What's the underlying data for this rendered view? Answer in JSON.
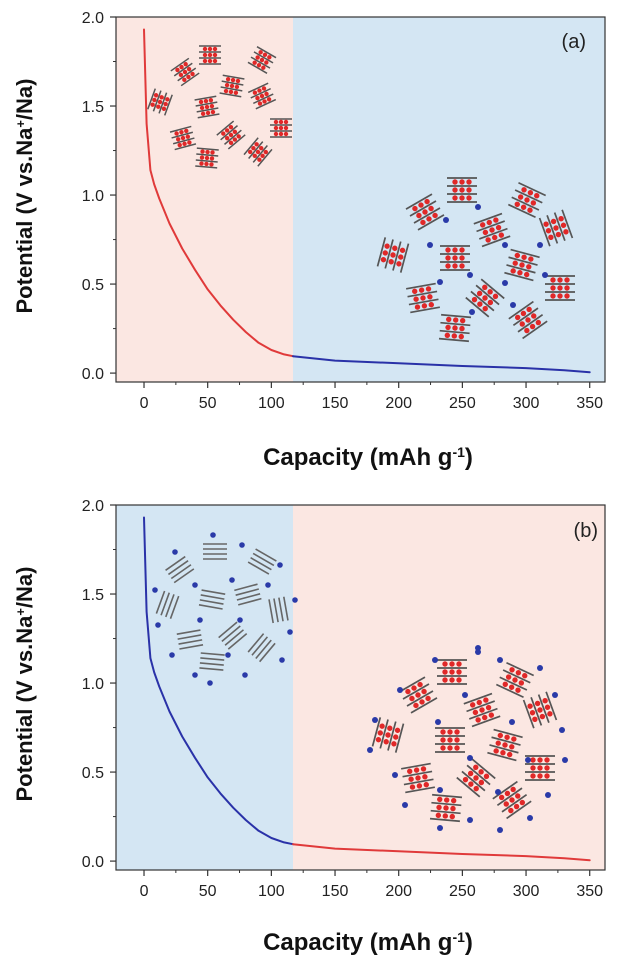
{
  "chart_data": [
    {
      "type": "line",
      "panel_label": "(a)",
      "xlabel": "Capacity (mAh g",
      "xlabel_sup": "-1",
      "xlabel_end": ")",
      "ylabel": "Potential (V vs.Na",
      "ylabel_sup": "+",
      "ylabel_end": "/Na)",
      "xlim": [
        -22,
        362
      ],
      "ylim": [
        -0.05,
        2.0
      ],
      "x_ticks": [
        0,
        50,
        100,
        150,
        200,
        250,
        300,
        350
      ],
      "y_ticks": [
        "0.0",
        "0.5",
        "1.0",
        "1.5",
        "2.0"
      ],
      "regions": [
        {
          "x0": -22,
          "x1": 117,
          "color": "#fbe7e2"
        },
        {
          "x0": 117,
          "x1": 362,
          "color": "#d4e6f3"
        }
      ],
      "series": [
        {
          "color": "#e03a3a",
          "x": [
            0,
            2,
            5,
            8,
            12,
            20,
            30,
            40,
            50,
            60,
            70,
            80,
            90,
            100,
            110,
            117
          ],
          "y": [
            1.93,
            1.4,
            1.14,
            1.06,
            0.98,
            0.84,
            0.7,
            0.58,
            0.47,
            0.38,
            0.3,
            0.23,
            0.17,
            0.13,
            0.105,
            0.095
          ]
        },
        {
          "color": "#2a32a8",
          "x": [
            117,
            150,
            200,
            250,
            300,
            330,
            350
          ],
          "y": [
            0.095,
            0.07,
            0.055,
            0.04,
            0.028,
            0.016,
            0.005
          ]
        }
      ]
    },
    {
      "type": "line",
      "panel_label": "(b)",
      "xlabel": "Capacity (mAh g",
      "xlabel_sup": "-1",
      "xlabel_end": ")",
      "ylabel": "Potential (V vs.Na",
      "ylabel_sup": "+",
      "ylabel_end": "/Na)",
      "xlim": [
        -22,
        362
      ],
      "ylim": [
        -0.05,
        2.0
      ],
      "x_ticks": [
        0,
        50,
        100,
        150,
        200,
        250,
        300,
        350
      ],
      "y_ticks": [
        "0.0",
        "0.5",
        "1.0",
        "1.5",
        "2.0"
      ],
      "regions": [
        {
          "x0": -22,
          "x1": 117,
          "color": "#d4e6f3"
        },
        {
          "x0": 117,
          "x1": 362,
          "color": "#fbe7e2"
        }
      ],
      "series": [
        {
          "color": "#2a32a8",
          "x": [
            0,
            2,
            5,
            8,
            12,
            20,
            30,
            40,
            50,
            60,
            70,
            80,
            90,
            100,
            110,
            117
          ],
          "y": [
            1.93,
            1.4,
            1.14,
            1.06,
            0.98,
            0.84,
            0.7,
            0.58,
            0.47,
            0.38,
            0.3,
            0.23,
            0.17,
            0.13,
            0.105,
            0.095
          ]
        },
        {
          "color": "#e03a3a",
          "x": [
            117,
            150,
            200,
            250,
            300,
            330,
            350
          ],
          "y": [
            0.095,
            0.07,
            0.055,
            0.04,
            0.028,
            0.016,
            0.005
          ]
        }
      ]
    }
  ]
}
